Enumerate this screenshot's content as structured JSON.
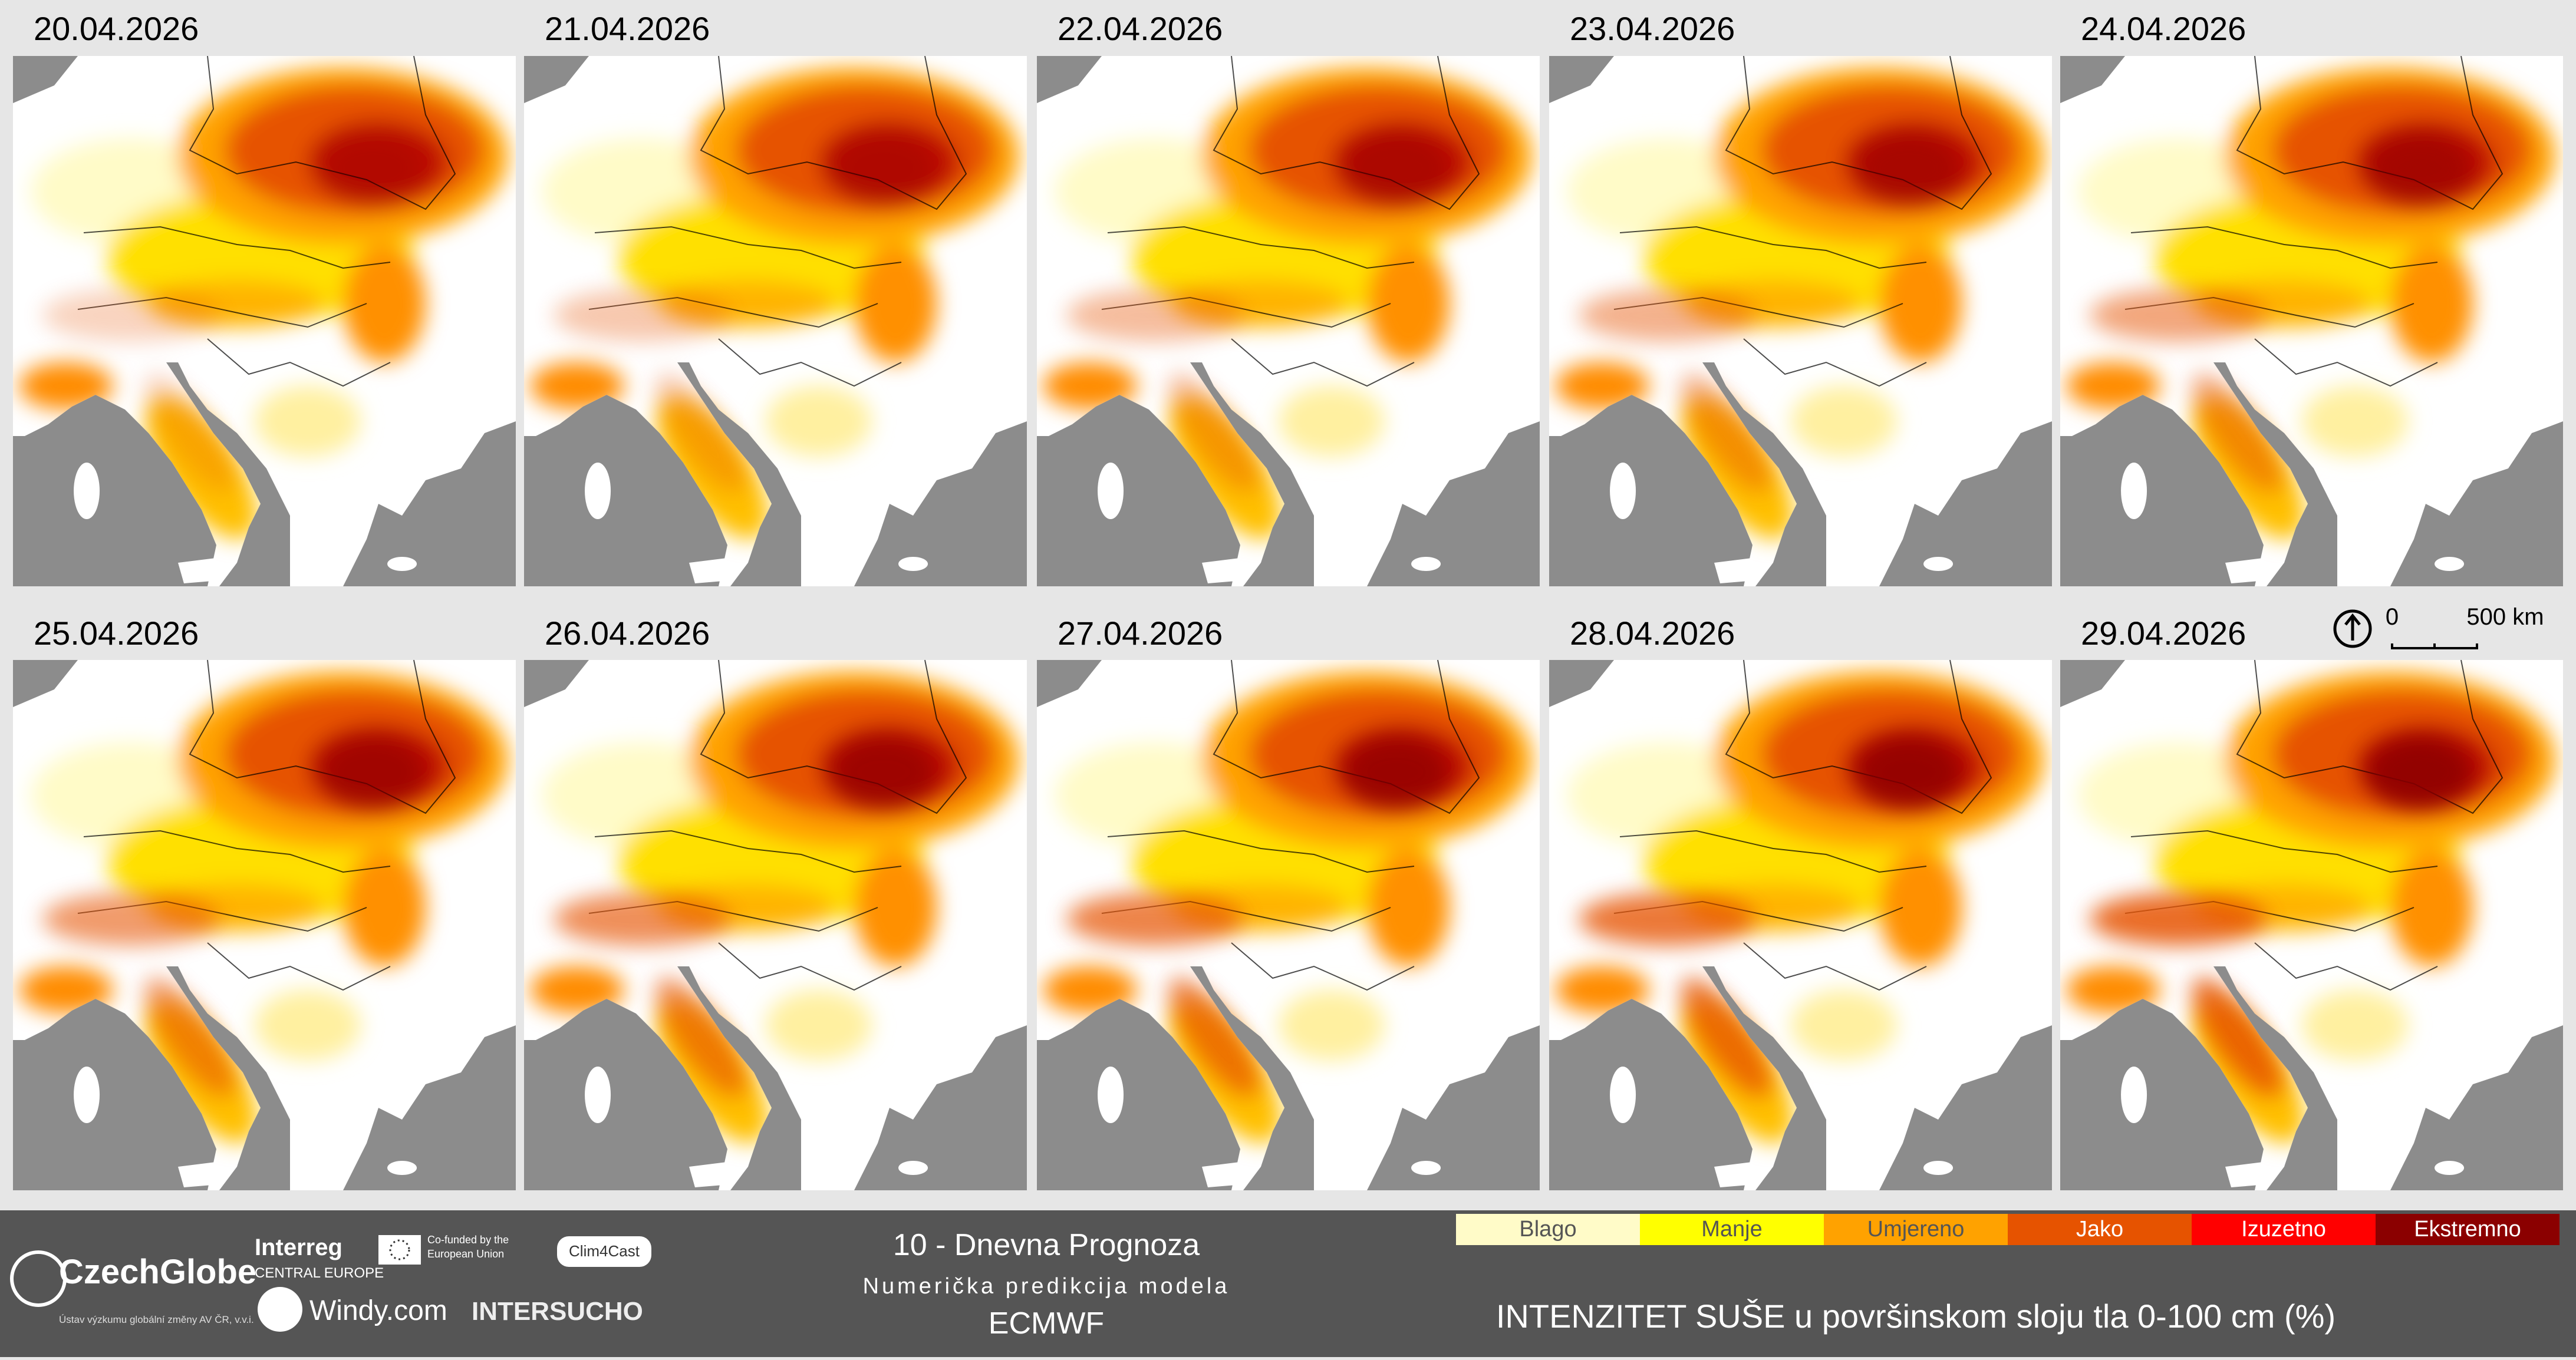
{
  "panels": [
    {
      "date": "20.04.2026"
    },
    {
      "date": "21.04.2026"
    },
    {
      "date": "22.04.2026"
    },
    {
      "date": "23.04.2026"
    },
    {
      "date": "24.04.2026"
    },
    {
      "date": "25.04.2026"
    },
    {
      "date": "26.04.2026"
    },
    {
      "date": "27.04.2026"
    },
    {
      "date": "28.04.2026"
    },
    {
      "date": "29.04.2026"
    }
  ],
  "scale_bar": {
    "start": "0",
    "end": "500 km"
  },
  "legend": {
    "items": [
      {
        "label": "Blago",
        "color": "#fffbc8"
      },
      {
        "label": "Manje",
        "color": "#ffff00"
      },
      {
        "label": "Umjereno",
        "color": "#ffa200"
      },
      {
        "label": "Jako",
        "color": "#e65300"
      },
      {
        "label": "Izuzetno",
        "color": "#ff0000"
      },
      {
        "label": "Ekstremno",
        "color": "#8b0000"
      }
    ],
    "title": "INTENZITET SUŠE u površinskom sloju tla 0-100 cm (%)"
  },
  "footer": {
    "title": "10 - Dnevna Prognoza",
    "subtitle": "Numerička predikcija modela",
    "model": "ECMWF",
    "logos": {
      "czechglobe": "CzechGlobe",
      "czechglobe_sub": "Ústav výzkumu globální změny AV ČR, v.v.i.",
      "interreg": "Interreg",
      "interreg_sub": "CENTRAL EUROPE",
      "eu": "Co-funded by the European Union",
      "clim4cast": "Clim4Cast",
      "windy": "Windy.com",
      "intersucho": "INTERSUCHO"
    }
  }
}
